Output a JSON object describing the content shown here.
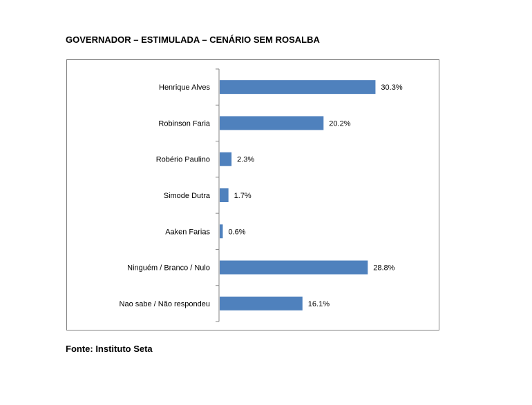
{
  "title": "GOVERNADOR – ESTIMULADA – CENÁRIO SEM ROSALBA",
  "source": "Fonte: Instituto Seta",
  "colors": {
    "bar": "#4f81bd",
    "axis": "#868686",
    "frame": "#7f7f7f"
  },
  "chart_data": {
    "type": "bar",
    "orientation": "horizontal",
    "categories": [
      "Henrique Alves",
      "Robinson Faria",
      "Robério Paulino",
      "Simode Dutra",
      "Aaken Farias",
      "Ninguém / Branco / Nulo",
      "Nao sabe / Não respondeu"
    ],
    "values": [
      30.3,
      20.2,
      2.3,
      1.7,
      0.6,
      28.8,
      16.1
    ],
    "value_labels": [
      "30.3%",
      "20.2%",
      "2.3%",
      "1.7%",
      "0.6%",
      "28.8%",
      "16.1%"
    ],
    "unit": "%",
    "xlim": [
      0,
      35
    ],
    "grid": false,
    "legend": "none"
  }
}
